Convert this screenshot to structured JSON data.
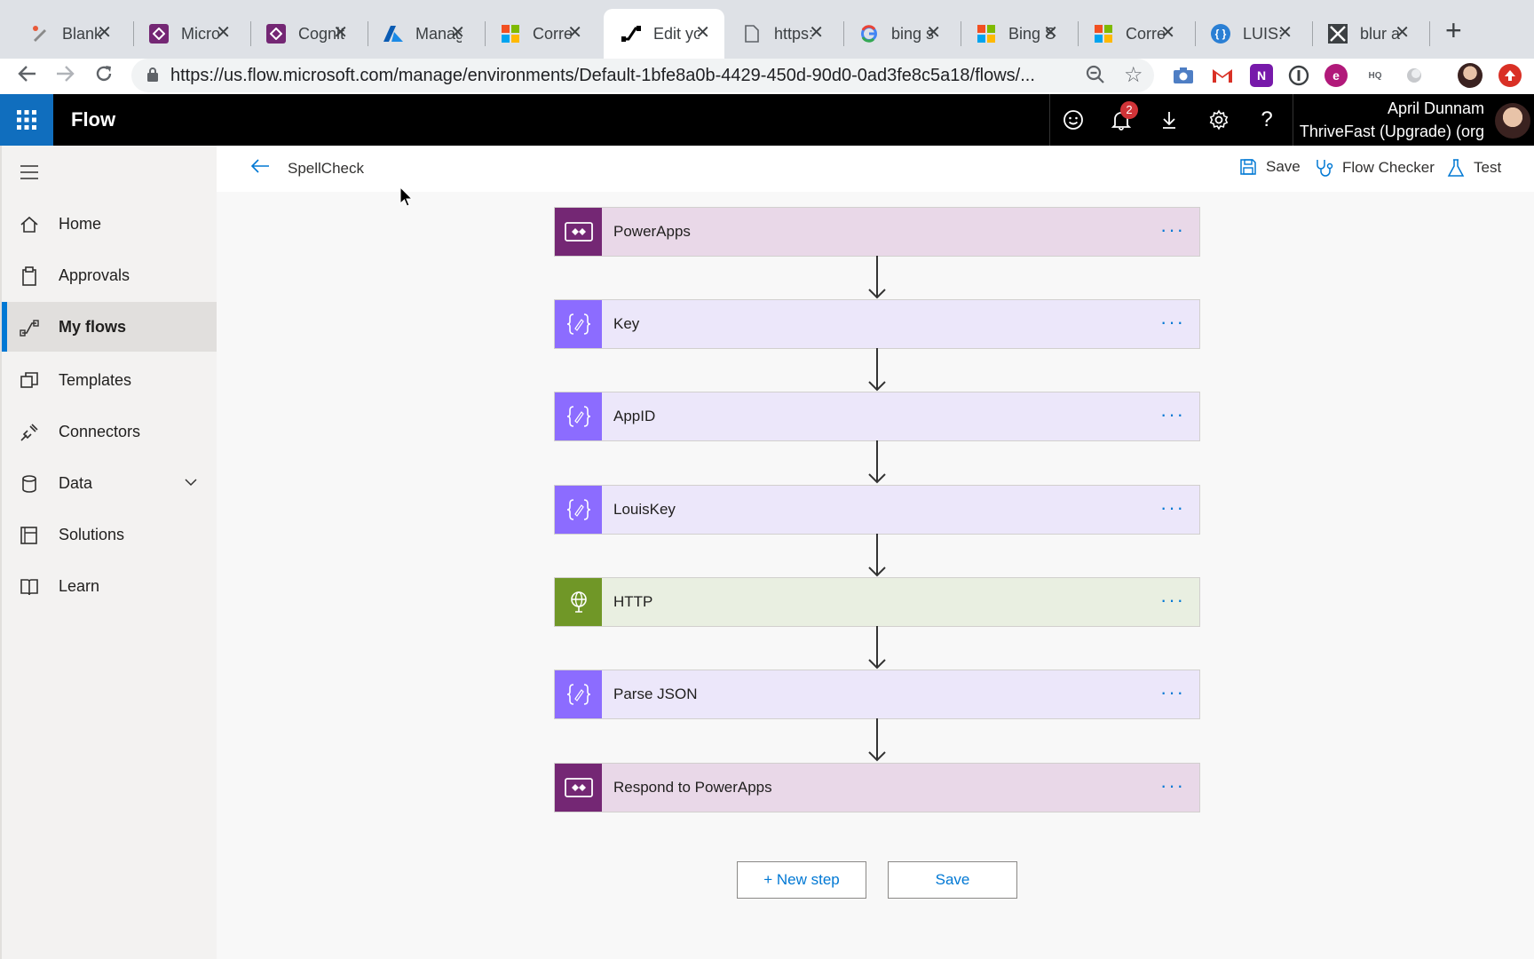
{
  "browser": {
    "tabs": [
      {
        "title": "Blank",
        "icon": "pen-icon"
      },
      {
        "title": "Micro",
        "icon": "powerapps-icon"
      },
      {
        "title": "Cognit",
        "icon": "powerapps-icon"
      },
      {
        "title": "Manag",
        "icon": "azure-icon"
      },
      {
        "title": "Corre",
        "icon": "microsoft-icon"
      },
      {
        "title": "Edit yo",
        "icon": "flow-icon",
        "active": true
      },
      {
        "title": "https:",
        "icon": "page-icon"
      },
      {
        "title": "bing s",
        "icon": "google-icon"
      },
      {
        "title": "Bing S",
        "icon": "microsoft-icon"
      },
      {
        "title": "Corre",
        "icon": "microsoft-icon"
      },
      {
        "title": "LUIS:",
        "icon": "luis-icon"
      },
      {
        "title": "blur a",
        "icon": "blur-icon"
      }
    ],
    "url": "https://us.flow.microsoft.com/manage/environments/Default-1bfe8a0b-4429-450d-90d0-0ad3fe8c5a18/flows/..."
  },
  "header": {
    "brand": "Flow",
    "notification_count": "2",
    "user_name": "April Dunnam",
    "user_org": "ThriveFast (Upgrade) (org"
  },
  "sidebar": {
    "items": [
      {
        "label": "Home"
      },
      {
        "label": "Approvals"
      },
      {
        "label": "My flows"
      },
      {
        "label": "Templates"
      },
      {
        "label": "Connectors"
      },
      {
        "label": "Data"
      },
      {
        "label": "Solutions"
      },
      {
        "label": "Learn"
      }
    ]
  },
  "commandbar": {
    "flow_name": "SpellCheck",
    "save_label": "Save",
    "checker_label": "Flow Checker",
    "test_label": "Test"
  },
  "steps": [
    {
      "label": "PowerApps",
      "kind": "powerapps"
    },
    {
      "label": "Key",
      "kind": "variable"
    },
    {
      "label": "AppID",
      "kind": "variable"
    },
    {
      "label": "LouisKey",
      "kind": "variable"
    },
    {
      "label": "HTTP",
      "kind": "http"
    },
    {
      "label": "Parse JSON",
      "kind": "variable"
    },
    {
      "label": "Respond to PowerApps",
      "kind": "powerapps"
    }
  ],
  "footer": {
    "new_step_label": "+ New step",
    "save_label": "Save"
  },
  "colors": {
    "accent": "#0078d4",
    "powerapps": "#742774",
    "variable": "#8c6cff",
    "http": "#709727"
  }
}
